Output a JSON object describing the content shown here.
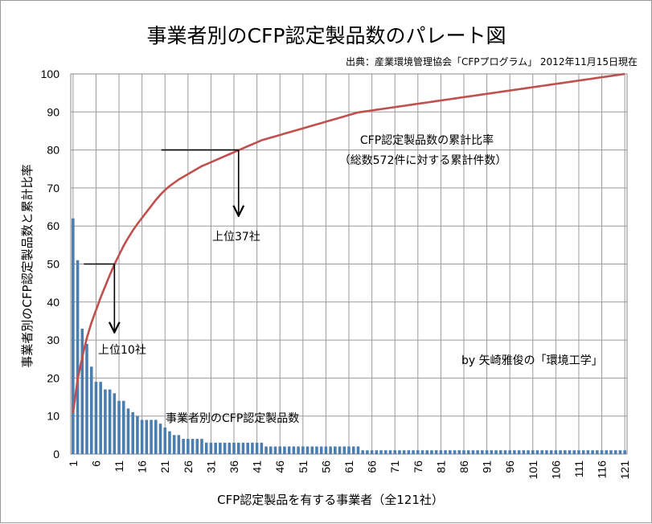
{
  "chart_data": {
    "type": "bar",
    "title": "事業者別のCFP認定製品数のパレート図",
    "source": "出典：産業環境管理協会「CFPプログラム」 2012年11月15日現在",
    "xlabel": "CFP認定製品を有する事業者（全121社）",
    "ylabel": "事業者別のCFP認定製品数と累計比率",
    "ylim": [
      0,
      100
    ],
    "yticks": [
      0,
      10,
      20,
      30,
      40,
      50,
      60,
      70,
      80,
      90,
      100
    ],
    "xticks": [
      1,
      6,
      11,
      16,
      21,
      26,
      31,
      36,
      41,
      46,
      51,
      56,
      61,
      66,
      71,
      76,
      81,
      86,
      91,
      96,
      101,
      106,
      111,
      116,
      121
    ],
    "grid": true,
    "bar_color": "#4a7eb0",
    "line_color": "#c0504d",
    "series": [
      {
        "name": "事業者別のCFP認定製品数",
        "kind": "bar",
        "x_start": 1,
        "values": [
          62,
          51,
          33,
          29,
          23,
          19,
          19,
          17,
          17,
          16,
          14,
          14,
          12,
          11,
          10,
          9,
          9,
          9,
          9,
          8,
          7,
          6,
          5,
          5,
          4,
          4,
          4,
          4,
          4,
          3,
          3,
          3,
          3,
          3,
          3,
          3,
          3,
          3,
          3,
          3,
          3,
          3,
          2,
          2,
          2,
          2,
          2,
          2,
          2,
          2,
          2,
          2,
          2,
          2,
          2,
          2,
          2,
          2,
          2,
          2,
          2,
          2,
          2,
          1,
          1,
          1,
          1,
          1,
          1,
          1,
          1,
          1,
          1,
          1,
          1,
          1,
          1,
          1,
          1,
          1,
          1,
          1,
          1,
          1,
          1,
          1,
          1,
          1,
          1,
          1,
          1,
          1,
          1,
          1,
          1,
          1,
          1,
          1,
          1,
          1,
          1,
          1,
          1,
          1,
          1,
          1,
          1,
          1,
          1,
          1,
          1,
          1,
          1,
          1,
          1,
          1,
          1,
          1,
          1,
          1,
          1
        ]
      },
      {
        "name": "CFP認定製品数の累計比率",
        "kind": "line",
        "x_start": 1
      }
    ],
    "annotations": {
      "line_label_1": "CFP認定製品数の累計比率",
      "line_label_2": "（総数572件に対する累計件数）",
      "bar_label": "事業者別のCFP認定製品数",
      "top10": "上位10社",
      "top37": "上位37社",
      "credit": "by 矢崎雅俊の「環境工学」",
      "marker_50": {
        "x": 10,
        "y": 50
      },
      "marker_80": {
        "x": 37,
        "y": 80
      }
    }
  }
}
